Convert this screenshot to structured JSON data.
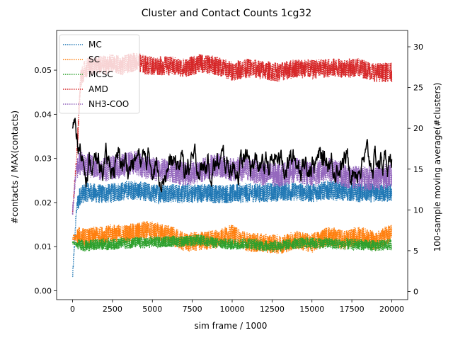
{
  "chart_data": {
    "type": "line",
    "title": "Cluster and Contact Counts 1cg32",
    "xlabel": "sim frame / 1000",
    "ylabel": "#contacts / MAX(contacts)",
    "y2label": "100-sample moving average(#clusters)",
    "xlim": [
      -1000,
      21000
    ],
    "ylim": [
      -0.002,
      0.059
    ],
    "y2lim": [
      -1,
      32
    ],
    "xticks": [
      0,
      2500,
      5000,
      7500,
      10000,
      12500,
      15000,
      17500,
      20000
    ],
    "xtick_labels": [
      "0",
      "2500",
      "5000",
      "7500",
      "10000",
      "12500",
      "15000",
      "17500",
      "20000"
    ],
    "yticks": [
      0.0,
      0.01,
      0.02,
      0.03,
      0.04,
      0.05
    ],
    "ytick_labels": [
      "0.00",
      "0.01",
      "0.02",
      "0.03",
      "0.04",
      "0.05"
    ],
    "y2ticks": [
      0,
      5,
      10,
      15,
      20,
      25,
      30
    ],
    "y2tick_labels": [
      "0",
      "5",
      "10",
      "15",
      "20",
      "25",
      "30"
    ],
    "grid": false,
    "legend_position": "top-left",
    "x": [
      0,
      250,
      500,
      750,
      1000,
      1500,
      2000,
      2500,
      3000,
      3500,
      4000,
      4500,
      5000,
      6000,
      7000,
      8000,
      9000,
      10000,
      11000,
      12000,
      13000,
      14000,
      15000,
      16000,
      17000,
      18000,
      19000,
      20000
    ],
    "series": [
      {
        "name": "MC",
        "color": "#1f77b4",
        "axis": "left",
        "style": "dotted",
        "noise": 0.0022,
        "values": [
          0.003,
          0.019,
          0.022,
          0.022,
          0.0225,
          0.022,
          0.022,
          0.0222,
          0.0225,
          0.0228,
          0.0228,
          0.0225,
          0.022,
          0.0222,
          0.022,
          0.0222,
          0.022,
          0.022,
          0.0222,
          0.0222,
          0.0225,
          0.0225,
          0.0222,
          0.0228,
          0.0225,
          0.0222,
          0.0222,
          0.0222
        ]
      },
      {
        "name": "SC",
        "color": "#ff7f0e",
        "axis": "left",
        "style": "dotted",
        "noise": 0.0022,
        "values": [
          0.012,
          0.012,
          0.0125,
          0.012,
          0.012,
          0.0125,
          0.0125,
          0.013,
          0.0128,
          0.013,
          0.0132,
          0.0138,
          0.0135,
          0.0128,
          0.011,
          0.0112,
          0.0118,
          0.0128,
          0.011,
          0.0108,
          0.0105,
          0.0115,
          0.0108,
          0.0125,
          0.0115,
          0.0125,
          0.0112,
          0.0132
        ]
      },
      {
        "name": "MCSC",
        "color": "#2ca02c",
        "axis": "left",
        "style": "dotted",
        "noise": 0.0013,
        "values": [
          0.011,
          0.0105,
          0.0105,
          0.0102,
          0.0102,
          0.0105,
          0.0105,
          0.0105,
          0.0108,
          0.0108,
          0.011,
          0.0108,
          0.011,
          0.0112,
          0.0112,
          0.0115,
          0.0108,
          0.0105,
          0.0108,
          0.0102,
          0.0102,
          0.0108,
          0.0108,
          0.0108,
          0.0105,
          0.0105,
          0.0102,
          0.0105
        ]
      },
      {
        "name": "AMD",
        "color": "#d62728",
        "axis": "left",
        "style": "dotted",
        "noise": 0.0022,
        "values": [
          0.018,
          0.03,
          0.048,
          0.05,
          0.051,
          0.051,
          0.0512,
          0.0515,
          0.051,
          0.0515,
          0.052,
          0.0512,
          0.051,
          0.051,
          0.0505,
          0.0515,
          0.051,
          0.0498,
          0.0505,
          0.05,
          0.0495,
          0.0505,
          0.0502,
          0.0505,
          0.0505,
          0.0505,
          0.0495,
          0.0495
        ]
      },
      {
        "name": "NH3-COO",
        "color": "#9467bd",
        "axis": "left",
        "style": "dotted",
        "noise": 0.0028,
        "values": [
          0.018,
          0.028,
          0.029,
          0.0285,
          0.0285,
          0.028,
          0.0275,
          0.028,
          0.0282,
          0.0288,
          0.029,
          0.0282,
          0.0275,
          0.0275,
          0.0265,
          0.0272,
          0.0285,
          0.0275,
          0.0275,
          0.0265,
          0.0262,
          0.0275,
          0.0262,
          0.0275,
          0.0262,
          0.0255,
          0.0255,
          0.0262
        ]
      },
      {
        "name": "",
        "color": "#000000",
        "axis": "right",
        "style": "solid",
        "noise": 0.45,
        "values": [
          20.2,
          18.5,
          17.2,
          16.2,
          15.8,
          15.3,
          15.4,
          15.3,
          16.0,
          15.5,
          16.2,
          15.8,
          15.6,
          15.3,
          15.4,
          15.2,
          15.5,
          15.6,
          15.5,
          15.2,
          16.2,
          15.8,
          15.9,
          16.0,
          15.8,
          15.6,
          16.0,
          16.0
        ]
      }
    ]
  }
}
